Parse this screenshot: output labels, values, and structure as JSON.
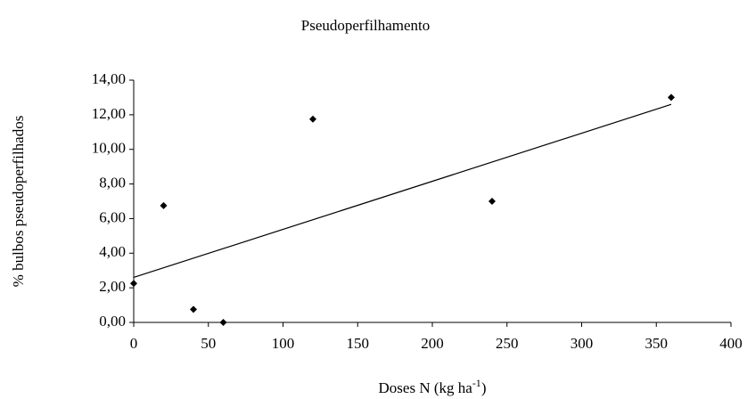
{
  "chart_data": {
    "type": "scatter",
    "title": "Pseudoperfilhamento",
    "x_label": "Doses N (kg ha",
    "x_label_sup": "-1",
    "x_label_end": ")",
    "y_label": "% bulbos pseudoperfilhados",
    "x": [
      0,
      20,
      40,
      60,
      120,
      240,
      360
    ],
    "values": [
      2.25,
      6.75,
      0.75,
      0.0,
      11.75,
      7.0,
      13.0
    ],
    "color": "#000000",
    "trendline": {
      "x": [
        0,
        360
      ],
      "values": [
        2.6,
        12.6
      ]
    },
    "xlim": [
      0,
      400
    ],
    "ylim": [
      0,
      14
    ],
    "xticks": [
      0,
      50,
      100,
      150,
      200,
      250,
      300,
      350,
      400
    ],
    "yticks": [
      {
        "value": 0,
        "label": "0,00"
      },
      {
        "value": 2,
        "label": "2,00"
      },
      {
        "value": 4,
        "label": "4,00"
      },
      {
        "value": 6,
        "label": "6,00"
      },
      {
        "value": 8,
        "label": "8,00"
      },
      {
        "value": 10,
        "label": "10,00"
      },
      {
        "value": 12,
        "label": "12,00"
      },
      {
        "value": 14,
        "label": "14,00"
      }
    ],
    "grid": false
  }
}
